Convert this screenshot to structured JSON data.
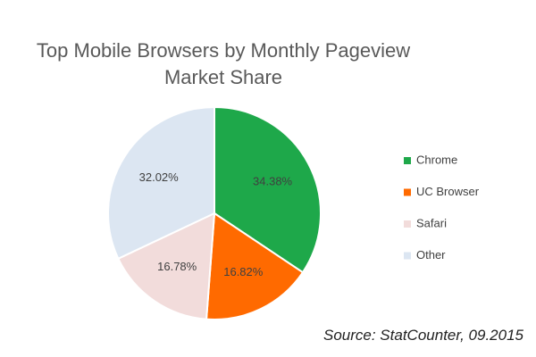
{
  "chart_data": {
    "type": "pie",
    "title": "Top Mobile Browsers by Monthly Pageview Market Share",
    "categories": [
      "Chrome",
      "UC Browser",
      "Safari",
      "Other"
    ],
    "values": [
      34.38,
      16.82,
      16.78,
      32.02
    ],
    "value_labels": [
      "34.38%",
      "16.82%",
      "16.78%",
      "32.02%"
    ],
    "colors": [
      "#1ea84a",
      "#ff6a00",
      "#f2dcdb",
      "#dce6f2"
    ],
    "legend": "right",
    "annotation": "Source: StatCounter, 09.2015"
  }
}
